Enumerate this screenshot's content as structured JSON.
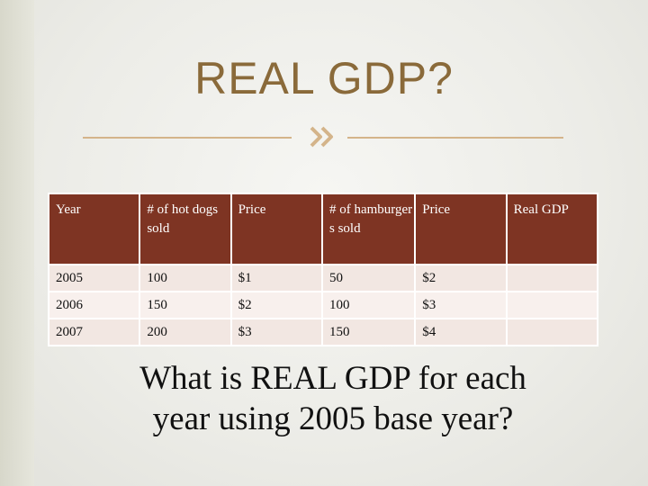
{
  "slide": {
    "title": "REAL GDP?",
    "question": "What is REAL GDP for each year using 2005 base year?"
  },
  "table": {
    "headers": [
      "Year",
      "# of hot dogs sold",
      "Price",
      "# of hamburger s sold",
      "Price",
      "Real GDP"
    ],
    "rows": [
      [
        "2005",
        "100",
        "$1",
        "50",
        "$2",
        ""
      ],
      [
        "2006",
        "150",
        "$2",
        "100",
        "$3",
        ""
      ],
      [
        "2007",
        "200",
        "$3",
        "150",
        "$4",
        ""
      ]
    ]
  },
  "colors": {
    "header_bg": "#7e3423",
    "title": "#8a6a3a",
    "rule": "#d4b48a"
  },
  "icons": [
    "double-chevron-ornament-icon"
  ]
}
